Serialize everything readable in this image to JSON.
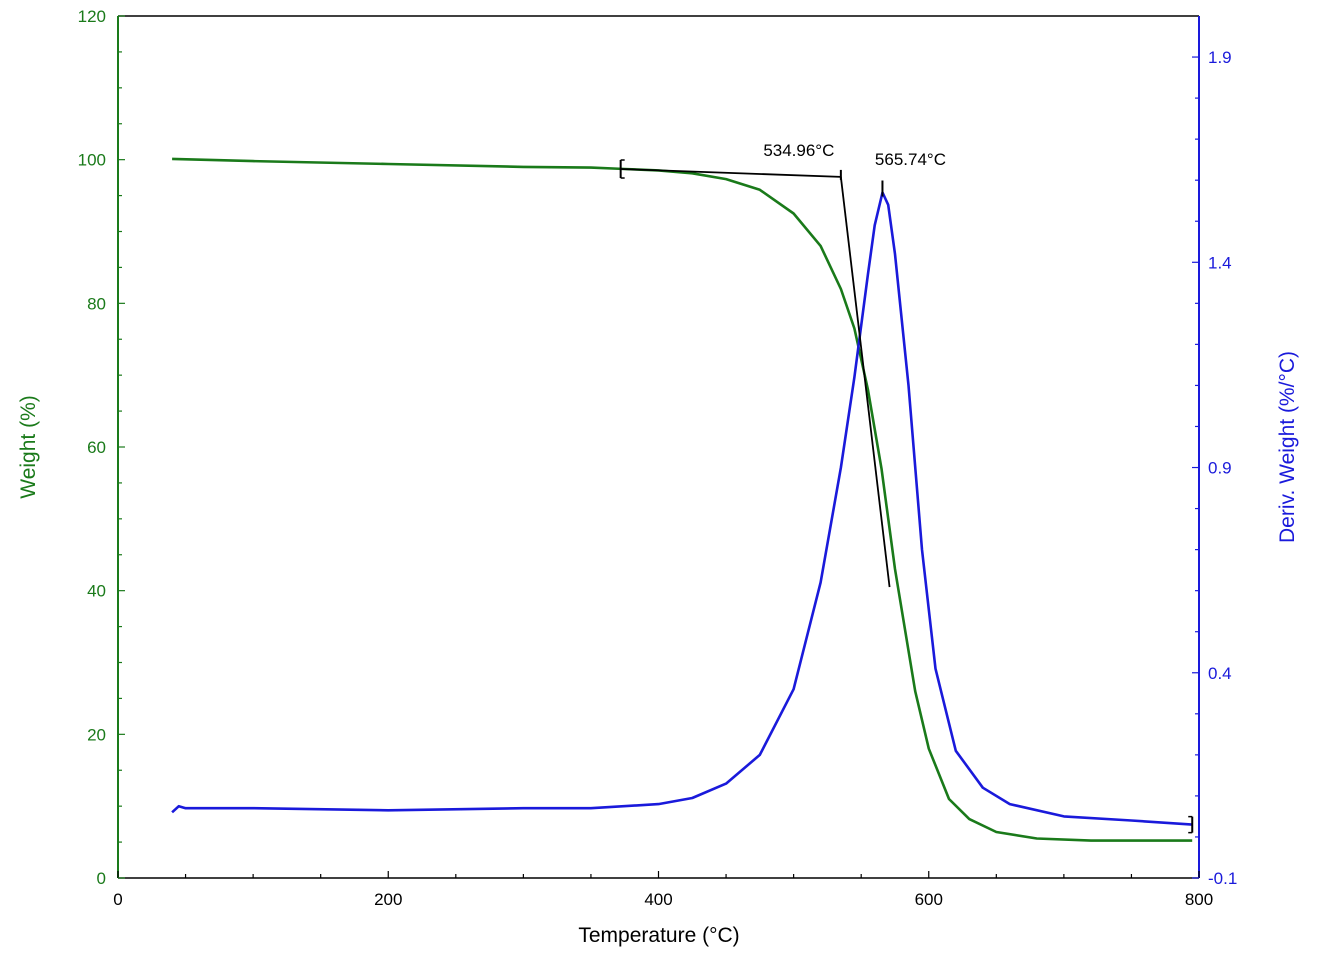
{
  "chart_data": {
    "type": "line",
    "xlabel": "Temperature (°C)",
    "ylabel_left": "Weight (%)",
    "ylabel_right": "Deriv. Weight (%/°C)",
    "xlim": [
      0,
      800
    ],
    "ylim_left": [
      0,
      120
    ],
    "ylim_right": [
      -0.1,
      2.0
    ],
    "x_ticks": [
      0,
      200,
      400,
      600,
      800
    ],
    "y_left_ticks": [
      0,
      20,
      40,
      60,
      80,
      100,
      120
    ],
    "y_right_ticks": [
      -0.1,
      0.4,
      0.9,
      1.4,
      1.9
    ],
    "y_right_tick_labels": [
      "-0.1",
      "0.4",
      "0.9",
      "1.4",
      "1.9"
    ],
    "grid": false,
    "colors": {
      "weight": "#1a7a1a",
      "deriv": "#1a1adb",
      "annotation": "#000000"
    },
    "series": [
      {
        "axis": "left",
        "x": [
          40,
          100,
          200,
          300,
          350,
          375,
          400,
          425,
          450,
          475,
          500,
          520,
          535,
          545,
          555,
          565,
          575,
          590,
          600,
          615,
          630,
          650,
          680,
          720,
          760,
          795
        ],
        "values": [
          100.1,
          99.8,
          99.4,
          99.0,
          98.9,
          98.7,
          98.5,
          98.1,
          97.3,
          95.8,
          92.5,
          88.0,
          82.0,
          76.5,
          68.0,
          57.0,
          43.0,
          26.0,
          18.0,
          11.0,
          8.2,
          6.4,
          5.5,
          5.2,
          5.2,
          5.2
        ]
      },
      {
        "axis": "right",
        "x": [
          40,
          45,
          50,
          60,
          100,
          200,
          300,
          350,
          400,
          425,
          450,
          475,
          500,
          520,
          535,
          545,
          555,
          560,
          565.74,
          570,
          575,
          585,
          595,
          605,
          620,
          640,
          660,
          700,
          750,
          795
        ],
        "values": [
          0.06,
          0.075,
          0.07,
          0.07,
          0.07,
          0.065,
          0.07,
          0.07,
          0.08,
          0.095,
          0.13,
          0.2,
          0.36,
          0.62,
          0.9,
          1.12,
          1.37,
          1.49,
          1.57,
          1.54,
          1.42,
          1.1,
          0.7,
          0.41,
          0.21,
          0.12,
          0.08,
          0.05,
          0.04,
          0.03
        ]
      }
    ],
    "annotations": [
      {
        "label": "534.96°C",
        "x": 534.96,
        "desc": "onset"
      },
      {
        "label": "565.74°C",
        "x": 565.74,
        "desc": "peak"
      }
    ],
    "onset_construction": {
      "baseline": {
        "from": [
          372,
          98.7
        ],
        "to": [
          534.96,
          97.6
        ]
      },
      "tangent": {
        "from": [
          534.96,
          97.6
        ],
        "to": [
          571,
          40.5
        ]
      },
      "peak_marker": {
        "x": 565.74,
        "y_right": 1.57
      },
      "end_marker": {
        "x": 795,
        "y_right": 0.03
      }
    }
  }
}
